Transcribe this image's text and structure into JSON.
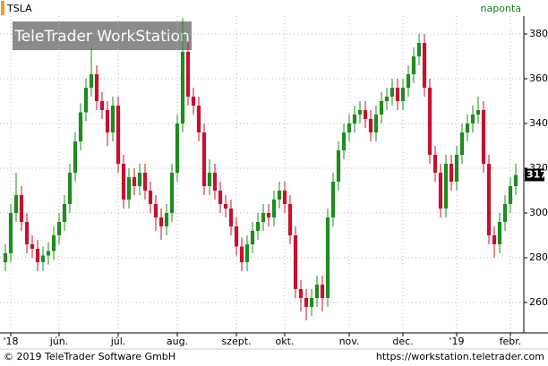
{
  "chart_data": {
    "type": "candlestick",
    "symbol": "TSLA",
    "period": "naponta",
    "categories": [
      null,
      "'18",
      null,
      null,
      null,
      null,
      null,
      null,
      null,
      null,
      "jún.",
      null,
      null,
      null,
      null,
      null,
      null,
      null,
      null,
      null,
      null,
      "júl.",
      null,
      null,
      null,
      null,
      null,
      null,
      null,
      null,
      null,
      null,
      "aug.",
      null,
      null,
      null,
      null,
      null,
      null,
      null,
      null,
      null,
      null,
      "szept.",
      null,
      null,
      null,
      null,
      null,
      null,
      null,
      null,
      "okt.",
      null,
      null,
      null,
      null,
      null,
      null,
      null,
      null,
      null,
      null,
      null,
      "nov.",
      null,
      null,
      null,
      null,
      null,
      null,
      null,
      null,
      null,
      "dec.",
      null,
      null,
      null,
      null,
      null,
      null,
      null,
      null,
      null,
      "'19",
      null,
      null,
      null,
      null,
      null,
      null,
      null,
      null,
      null,
      "febr.",
      null
    ],
    "open": [
      278,
      282,
      300,
      308,
      296,
      286,
      284,
      278,
      281,
      283,
      290,
      296,
      304,
      318,
      332,
      345,
      356,
      362,
      350,
      346,
      336,
      348,
      322,
      306,
      316,
      312,
      318,
      310,
      304,
      298,
      294,
      300,
      318,
      340,
      372,
      352,
      348,
      336,
      312,
      318,
      310,
      304,
      302,
      294,
      285,
      278,
      286,
      292,
      296,
      300,
      298,
      306,
      310,
      304,
      290,
      266,
      262,
      258,
      262,
      268,
      262,
      298,
      314,
      328,
      336,
      340,
      344,
      346,
      342,
      336,
      344,
      350,
      352,
      356,
      350,
      356,
      362,
      370,
      376,
      356,
      326,
      318,
      302,
      322,
      314,
      326,
      336,
      340,
      344,
      346,
      322,
      290,
      286,
      296,
      304,
      312
    ],
    "high": [
      286,
      304,
      318,
      312,
      300,
      290,
      288,
      285,
      287,
      294,
      300,
      308,
      322,
      336,
      349,
      360,
      374,
      366,
      354,
      350,
      352,
      352,
      326,
      320,
      320,
      322,
      322,
      314,
      308,
      302,
      304,
      322,
      344,
      387,
      376,
      356,
      352,
      340,
      324,
      322,
      314,
      308,
      306,
      298,
      289,
      290,
      296,
      300,
      304,
      304,
      310,
      314,
      314,
      308,
      294,
      270,
      266,
      266,
      272,
      272,
      302,
      318,
      332,
      340,
      344,
      348,
      350,
      350,
      346,
      348,
      354,
      356,
      360,
      360,
      360,
      366,
      374,
      380,
      380,
      360,
      330,
      322,
      326,
      326,
      330,
      340,
      344,
      348,
      352,
      350,
      326,
      294,
      300,
      308,
      316,
      322
    ],
    "low": [
      274,
      278,
      296,
      292,
      282,
      280,
      274,
      274,
      277,
      279,
      286,
      292,
      300,
      314,
      328,
      341,
      352,
      346,
      342,
      330,
      332,
      318,
      302,
      302,
      308,
      308,
      306,
      300,
      292,
      288,
      290,
      296,
      314,
      336,
      348,
      344,
      332,
      308,
      308,
      306,
      300,
      298,
      290,
      281,
      274,
      274,
      282,
      288,
      292,
      294,
      294,
      302,
      300,
      286,
      262,
      256,
      252,
      254,
      258,
      256,
      258,
      294,
      310,
      324,
      332,
      336,
      340,
      338,
      332,
      332,
      340,
      346,
      348,
      346,
      346,
      352,
      358,
      366,
      352,
      322,
      314,
      298,
      298,
      310,
      310,
      322,
      332,
      336,
      340,
      318,
      286,
      280,
      282,
      292,
      300,
      308
    ],
    "close": [
      282,
      300,
      308,
      296,
      286,
      284,
      278,
      281,
      283,
      290,
      296,
      304,
      318,
      332,
      345,
      356,
      362,
      350,
      346,
      336,
      348,
      322,
      306,
      316,
      312,
      318,
      310,
      304,
      298,
      294,
      300,
      318,
      340,
      372,
      352,
      348,
      336,
      312,
      318,
      310,
      304,
      302,
      294,
      285,
      278,
      286,
      292,
      296,
      300,
      298,
      306,
      310,
      304,
      290,
      266,
      262,
      258,
      262,
      268,
      262,
      298,
      314,
      328,
      336,
      340,
      344,
      346,
      342,
      336,
      344,
      350,
      352,
      356,
      350,
      356,
      362,
      370,
      376,
      356,
      326,
      318,
      302,
      322,
      314,
      326,
      336,
      340,
      344,
      346,
      322,
      290,
      286,
      296,
      304,
      312,
      317
    ],
    "up_color": "#1e8c1e",
    "down_color": "#c8102e",
    "ylim": [
      247.2,
      388
    ],
    "yticks": [
      260,
      280,
      300,
      320,
      340,
      360,
      380
    ],
    "grid": true
  },
  "watermark": "TeleTrader WorkStation",
  "footer": {
    "copyright": "© 2019 TeleTrader Software GmbH",
    "url": "https://workstation.teletrader.com"
  }
}
